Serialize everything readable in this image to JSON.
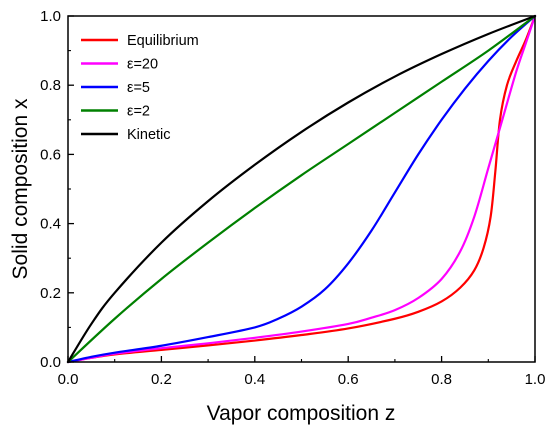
{
  "chart_data": {
    "type": "line",
    "title": "",
    "xlabel": "Vapor composition z",
    "ylabel": "Solid composition x",
    "xlim": [
      0,
      1
    ],
    "ylim": [
      0,
      1
    ],
    "xticks": [
      "0.0",
      "0.2",
      "0.4",
      "0.6",
      "0.8",
      "1.0"
    ],
    "yticks": [
      "0.0",
      "0.2",
      "0.4",
      "0.6",
      "0.8",
      "1.0"
    ],
    "grid": false,
    "legend_position": "top-left",
    "series": [
      {
        "name": "Equilibrium",
        "color": "#ff0000",
        "points": [
          [
            0,
            0
          ],
          [
            0.05,
            0.012
          ],
          [
            0.1,
            0.022
          ],
          [
            0.2,
            0.035
          ],
          [
            0.3,
            0.048
          ],
          [
            0.4,
            0.062
          ],
          [
            0.5,
            0.078
          ],
          [
            0.6,
            0.097
          ],
          [
            0.7,
            0.125
          ],
          [
            0.75,
            0.145
          ],
          [
            0.8,
            0.175
          ],
          [
            0.84,
            0.215
          ],
          [
            0.87,
            0.265
          ],
          [
            0.89,
            0.33
          ],
          [
            0.905,
            0.42
          ],
          [
            0.915,
            0.55
          ],
          [
            0.925,
            0.7
          ],
          [
            0.94,
            0.8
          ],
          [
            0.96,
            0.87
          ],
          [
            0.98,
            0.93
          ],
          [
            1,
            1
          ]
        ]
      },
      {
        "name": "ε=20",
        "color": "#ff00ff",
        "points": [
          [
            0,
            0
          ],
          [
            0.05,
            0.012
          ],
          [
            0.1,
            0.024
          ],
          [
            0.2,
            0.04
          ],
          [
            0.3,
            0.054
          ],
          [
            0.4,
            0.07
          ],
          [
            0.5,
            0.088
          ],
          [
            0.6,
            0.11
          ],
          [
            0.65,
            0.128
          ],
          [
            0.7,
            0.15
          ],
          [
            0.75,
            0.185
          ],
          [
            0.8,
            0.24
          ],
          [
            0.84,
            0.32
          ],
          [
            0.87,
            0.42
          ],
          [
            0.9,
            0.56
          ],
          [
            0.93,
            0.7
          ],
          [
            0.96,
            0.84
          ],
          [
            0.98,
            0.92
          ],
          [
            1,
            1
          ]
        ]
      },
      {
        "name": "ε=5",
        "color": "#0000ff",
        "points": [
          [
            0,
            0
          ],
          [
            0.05,
            0.015
          ],
          [
            0.1,
            0.027
          ],
          [
            0.2,
            0.047
          ],
          [
            0.3,
            0.072
          ],
          [
            0.4,
            0.1
          ],
          [
            0.45,
            0.125
          ],
          [
            0.5,
            0.16
          ],
          [
            0.55,
            0.21
          ],
          [
            0.6,
            0.285
          ],
          [
            0.65,
            0.38
          ],
          [
            0.7,
            0.49
          ],
          [
            0.75,
            0.6
          ],
          [
            0.8,
            0.7
          ],
          [
            0.85,
            0.79
          ],
          [
            0.9,
            0.87
          ],
          [
            0.95,
            0.94
          ],
          [
            1,
            1
          ]
        ]
      },
      {
        "name": "ε=2",
        "color": "#008000",
        "points": [
          [
            0,
            0
          ],
          [
            0.1,
            0.125
          ],
          [
            0.2,
            0.24
          ],
          [
            0.3,
            0.345
          ],
          [
            0.4,
            0.445
          ],
          [
            0.5,
            0.54
          ],
          [
            0.6,
            0.63
          ],
          [
            0.7,
            0.72
          ],
          [
            0.8,
            0.81
          ],
          [
            0.9,
            0.9
          ],
          [
            1,
            1
          ]
        ]
      },
      {
        "name": "Kinetic",
        "color": "#000000",
        "points": [
          [
            0,
            0
          ],
          [
            0.05,
            0.11
          ],
          [
            0.1,
            0.2
          ],
          [
            0.2,
            0.345
          ],
          [
            0.3,
            0.465
          ],
          [
            0.4,
            0.57
          ],
          [
            0.5,
            0.665
          ],
          [
            0.6,
            0.75
          ],
          [
            0.7,
            0.825
          ],
          [
            0.8,
            0.89
          ],
          [
            0.9,
            0.948
          ],
          [
            1,
            1
          ]
        ]
      }
    ]
  }
}
